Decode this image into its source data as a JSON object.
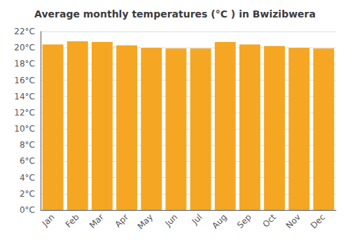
{
  "chart_data": {
    "type": "bar",
    "title": "Average monthly temperatures (°C ) in Bwizibwera",
    "categories": [
      "Jan",
      "Feb",
      "Mar",
      "Apr",
      "May",
      "Jun",
      "Jul",
      "Aug",
      "Sep",
      "Oct",
      "Nov",
      "Dec"
    ],
    "values": [
      20.4,
      20.8,
      20.7,
      20.3,
      20.0,
      19.9,
      19.9,
      20.7,
      20.4,
      20.2,
      20.0,
      19.9
    ],
    "color": "#F5A623",
    "ylim": [
      0,
      22
    ],
    "yticks": [
      {
        "value": 0,
        "label": "0°C"
      },
      {
        "value": 2,
        "label": "2°C"
      },
      {
        "value": 4,
        "label": "4°C"
      },
      {
        "value": 6,
        "label": "6°C"
      },
      {
        "value": 8,
        "label": "8°C"
      },
      {
        "value": 10,
        "label": "10°C"
      },
      {
        "value": 12,
        "label": "12°C"
      },
      {
        "value": 14,
        "label": "14°C"
      },
      {
        "value": 16,
        "label": "16°C"
      },
      {
        "value": 18,
        "label": "18°C"
      },
      {
        "value": 20,
        "label": "20°C"
      },
      {
        "value": 22,
        "label": "22°C"
      }
    ],
    "grid": true
  }
}
